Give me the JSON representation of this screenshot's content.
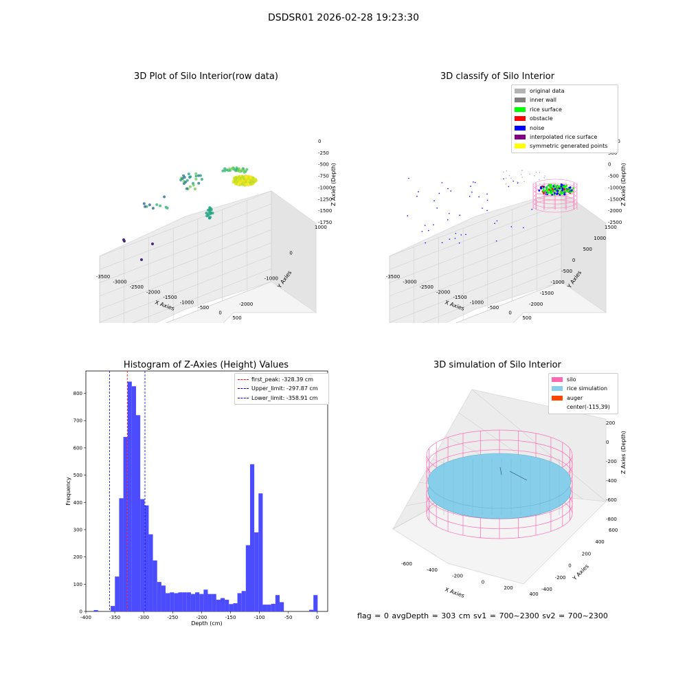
{
  "figure": {
    "suptitle": "DSDSR01 2026-02-28 19:23:30",
    "status": "flag = 0     avgDepth = 303 cm  sv1 = 700~2300  sv2 = 700~2300"
  },
  "colors": {
    "grid_plane": "#f2f2f2",
    "hist_bar": "#4c4cff",
    "first_peak_line": "#ff0000",
    "limit_line": "#0000cc",
    "silo_wire": "#ff69b4",
    "rice_sim": "#87ceeb",
    "auger": "#ff4500"
  },
  "chart_data": [
    {
      "type": "scatter",
      "projection": "3d",
      "title": "3D Plot of Silo Interior(row data)",
      "xlabel": "X Axies",
      "ylabel": "Y Axies",
      "zlabel": "Z Axies (Depth)",
      "x_ticks": [
        "-3500",
        "-3000",
        "-2500",
        "-2000",
        "-1500",
        "-1000",
        "-500",
        "0",
        "500"
      ],
      "y_ticks": [
        "-2000",
        "-1000",
        "0",
        "1000"
      ],
      "z_ticks": [
        "0",
        "-250",
        "-500",
        "-750",
        "-1000",
        "-1250",
        "-1500",
        "-1750"
      ],
      "colormap": "viridis by depth",
      "grid": true
    },
    {
      "type": "scatter",
      "projection": "3d",
      "title": "3D classify of Silo Interior",
      "xlabel": "X Axies",
      "ylabel": "Y Axies",
      "zlabel": "Z Axies (Depth)",
      "x_ticks": [
        "-3500",
        "-3000",
        "-2500",
        "-2000",
        "-1500",
        "-1000",
        "-500",
        "0",
        "500"
      ],
      "y_ticks": [
        "-2000",
        "-1500",
        "-1000",
        "-500",
        "0",
        "500",
        "1000",
        "1500"
      ],
      "z_ticks": [
        "1000",
        "500",
        "0",
        "-500",
        "-1000",
        "-1500",
        "-2000",
        "-2500"
      ],
      "legend_position": "top-right",
      "legend": [
        {
          "name": "original data",
          "color": "#b3b3b3"
        },
        {
          "name": "inner wall",
          "color": "#808080"
        },
        {
          "name": "rice surface",
          "color": "#00ff00"
        },
        {
          "name": "obstacle",
          "color": "#ff0000"
        },
        {
          "name": "noise",
          "color": "#0000ff"
        },
        {
          "name": "interpolated rice surface",
          "color": "#800080"
        },
        {
          "name": "symmetric generated points",
          "color": "#ffff00"
        }
      ],
      "grid": true
    },
    {
      "type": "bar",
      "title": "Histogram of Z-Axies (Height) Values",
      "xlabel": "Depth (cm)",
      "ylabel": "Frequency",
      "xlim": [
        -400,
        18
      ],
      "ylim": [
        0,
        882
      ],
      "x_ticks": [
        -400,
        -350,
        -300,
        -250,
        -200,
        -150,
        -100,
        -50,
        0
      ],
      "y_ticks": [
        0,
        100,
        200,
        300,
        400,
        500,
        600,
        700,
        800
      ],
      "bin_width": 7.3,
      "bin_starts": [
        -393.6,
        -386.3,
        -379,
        -371.7,
        -364.4,
        -357.1,
        -349.8,
        -342.5,
        -335.2,
        -327.9,
        -320.6,
        -313.3,
        -306,
        -298.7,
        -291.4,
        -284.1,
        -276.8,
        -269.5,
        -262.2,
        -254.9,
        -247.6,
        -240.3,
        -233,
        -225.7,
        -218.4,
        -211.1,
        -203.8,
        -196.5,
        -189.2,
        -181.9,
        -174.6,
        -167.3,
        -160,
        -152.7,
        -145.4,
        -138.1,
        -130.8,
        -123.5,
        -116.2,
        -108.9,
        -101.6,
        -94.3,
        -87,
        -79.7,
        -72.4,
        -65.1,
        -57.8,
        -50.5,
        -43.2,
        -35.9,
        -28.6,
        -21.3,
        -14,
        -6.7
      ],
      "values": [
        0,
        5,
        0,
        0,
        0,
        20,
        128,
        415,
        640,
        843,
        826,
        720,
        412,
        389,
        283,
        187,
        108,
        95,
        67,
        70,
        67,
        70,
        70,
        70,
        64,
        70,
        64,
        80,
        64,
        64,
        43,
        49,
        43,
        27,
        30,
        67,
        75,
        243,
        540,
        290,
        433,
        25,
        25,
        28,
        60,
        34,
        0,
        0,
        0,
        0,
        0,
        0,
        6,
        60
      ],
      "vlines": [
        {
          "name": "first_peak: -328.39 cm",
          "x": -328.39,
          "color": "#ff0000"
        },
        {
          "name": "Upper_limit: -297.87 cm",
          "x": -297.87,
          "color": "#0000cc"
        },
        {
          "name": "Lower_limit: -358.91 cm",
          "x": -358.91,
          "color": "#0000cc"
        }
      ],
      "legend_position": "top-right",
      "grid": false
    },
    {
      "type": "area",
      "projection": "3d",
      "title": "3D simulation of Silo Interior",
      "xlabel": "X Axies",
      "ylabel": "Y Axies",
      "zlabel": "Z Axies (Depth)",
      "x_ticks": [
        "-600",
        "-400",
        "-200",
        "0",
        "200",
        "400"
      ],
      "y_ticks": [
        "-400",
        "-200",
        "0",
        "200",
        "400",
        "600"
      ],
      "z_ticks": [
        "200",
        "0",
        "-200",
        "-400",
        "-600",
        "-800"
      ],
      "legend_position": "top-right",
      "legend": [
        {
          "name": "silo",
          "color": "#ff69b4"
        },
        {
          "name": "rice simulation",
          "color": "#87ceeb"
        },
        {
          "name": "auger",
          "color": "#ff4500"
        },
        {
          "name": "center(-115,39)",
          "color": ""
        }
      ],
      "grid": true
    }
  ]
}
